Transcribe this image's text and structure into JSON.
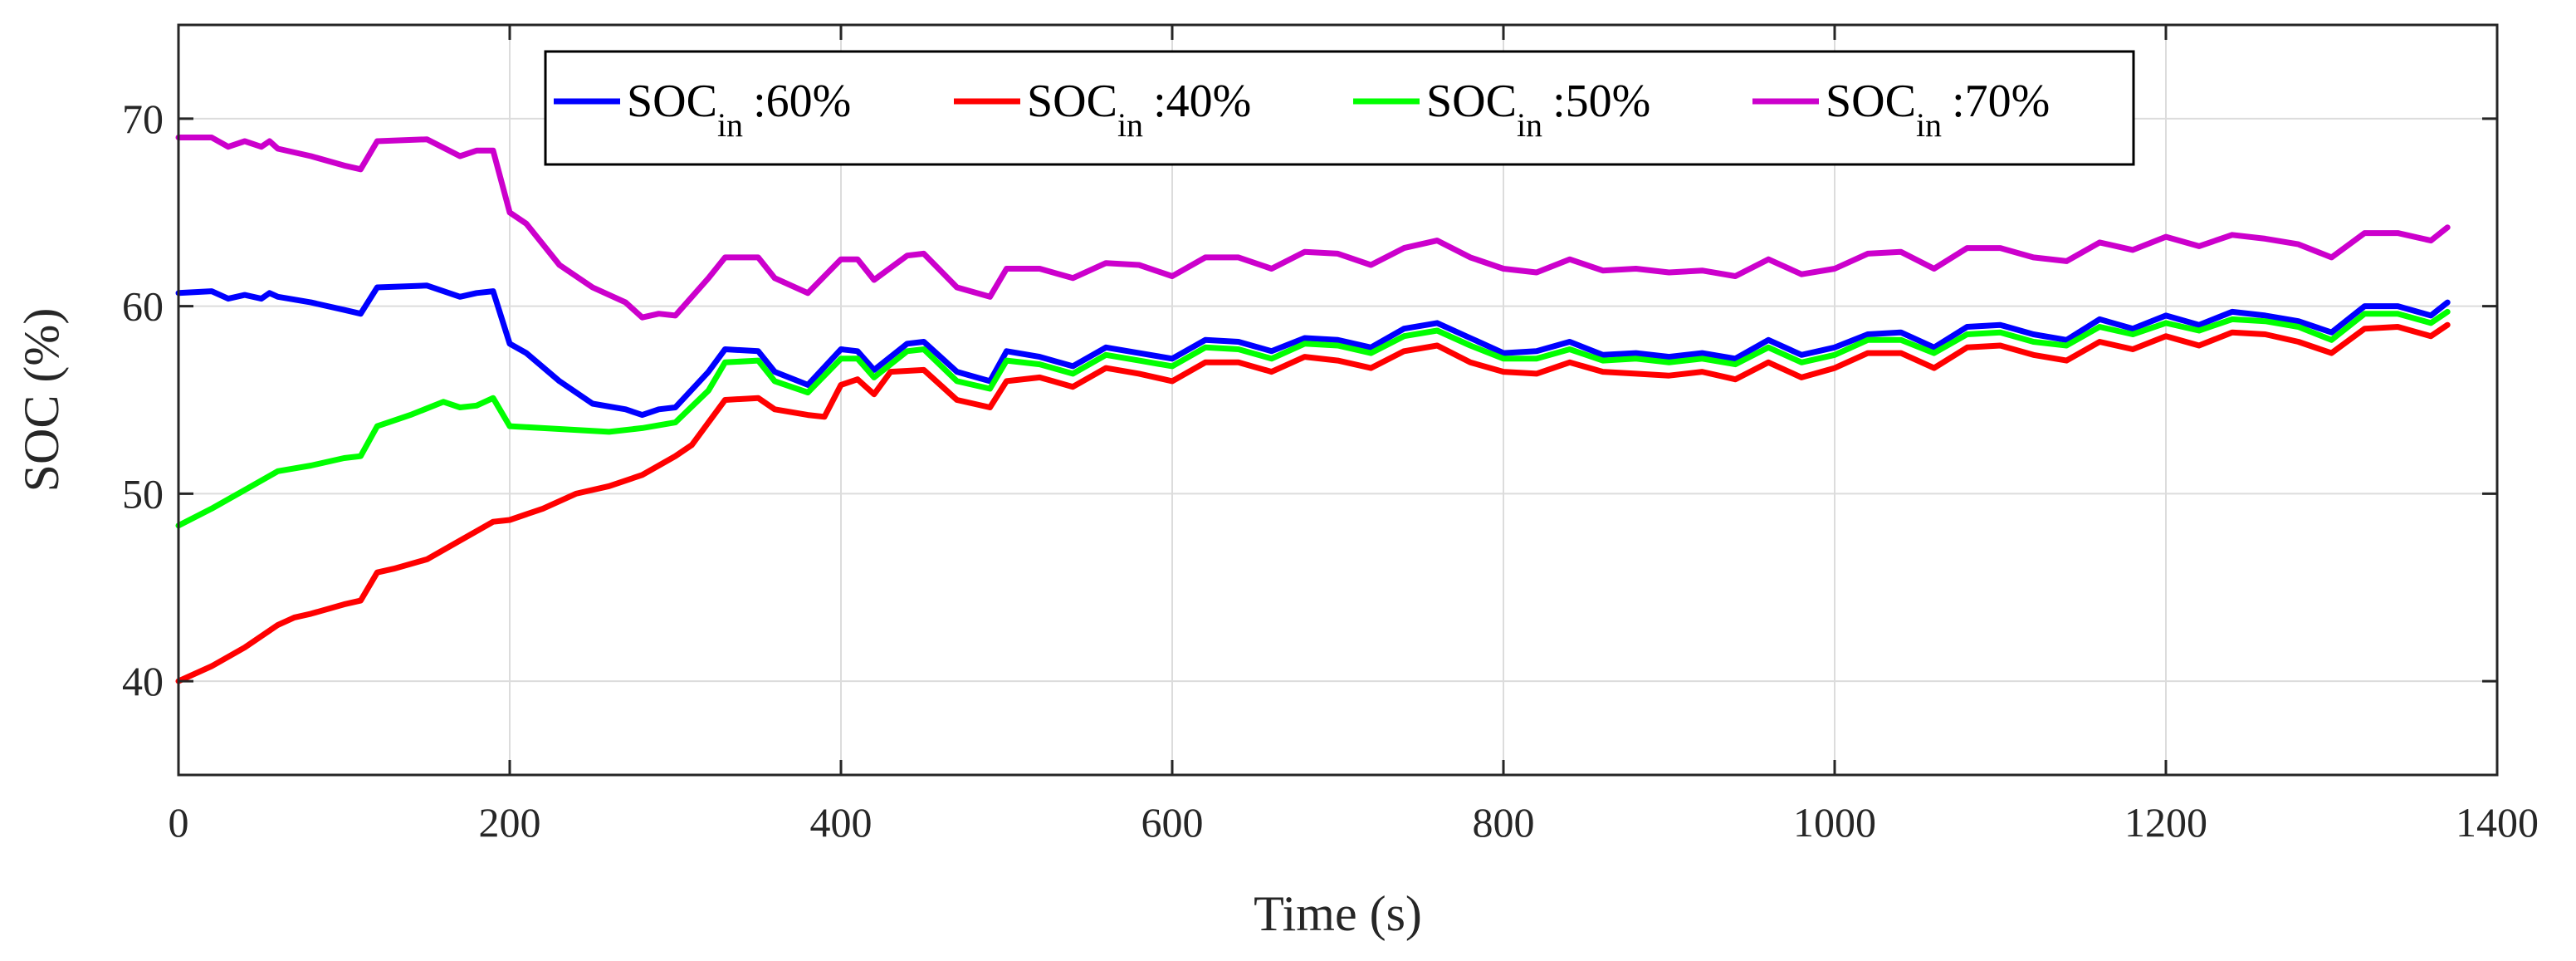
{
  "chart_data": {
    "type": "line",
    "title": "",
    "xlabel": "Time (s)",
    "ylabel": "SOC (%)",
    "xlim": [
      0,
      1400
    ],
    "ylim": [
      35,
      75
    ],
    "xticks": [
      0,
      200,
      400,
      600,
      800,
      1000,
      1200,
      1400
    ],
    "yticks": [
      40,
      50,
      60,
      70
    ],
    "x_tick_labels": [
      "0",
      "200",
      "400",
      "600",
      "800",
      "1000",
      "1200",
      "1400"
    ],
    "y_tick_labels": [
      "40",
      "50",
      "60",
      "70"
    ],
    "grid": true,
    "legend_position": "top-center",
    "series": [
      {
        "name": "SOC_in :60%",
        "legend_main": "SOC",
        "legend_sub": "in",
        "legend_value": ":60%",
        "color": "#0000ff",
        "x": [
          0,
          20,
          30,
          40,
          50,
          55,
          60,
          80,
          100,
          110,
          120,
          150,
          170,
          180,
          190,
          200,
          210,
          230,
          250,
          270,
          280,
          290,
          300,
          320,
          330,
          350,
          360,
          380,
          400,
          410,
          420,
          440,
          450,
          470,
          490,
          500,
          520,
          540,
          560,
          580,
          600,
          620,
          640,
          660,
          680,
          700,
          720,
          740,
          760,
          780,
          800,
          820,
          840,
          860,
          880,
          900,
          920,
          940,
          960,
          980,
          1000,
          1020,
          1040,
          1060,
          1080,
          1100,
          1120,
          1140,
          1160,
          1180,
          1200,
          1220,
          1240,
          1260,
          1280,
          1300,
          1320,
          1340,
          1360,
          1370
        ],
        "y": [
          60.7,
          60.8,
          60.4,
          60.6,
          60.4,
          60.7,
          60.5,
          60.2,
          59.8,
          59.6,
          61.0,
          61.1,
          60.5,
          60.7,
          60.8,
          58.0,
          57.5,
          56.0,
          54.8,
          54.5,
          54.2,
          54.5,
          54.6,
          56.5,
          57.7,
          57.6,
          56.5,
          55.8,
          57.7,
          57.6,
          56.6,
          58.0,
          58.1,
          56.5,
          56.0,
          57.6,
          57.3,
          56.8,
          57.8,
          57.5,
          57.2,
          58.2,
          58.1,
          57.6,
          58.3,
          58.2,
          57.8,
          58.8,
          59.1,
          58.3,
          57.5,
          57.6,
          58.1,
          57.4,
          57.5,
          57.3,
          57.5,
          57.2,
          58.2,
          57.4,
          57.8,
          58.5,
          58.6,
          57.8,
          58.9,
          59.0,
          58.5,
          58.2,
          59.3,
          58.8,
          59.5,
          59.0,
          59.7,
          59.5,
          59.2,
          58.6,
          60.0,
          60.0,
          59.5,
          60.2
        ]
      },
      {
        "name": "SOC_in :40%",
        "legend_main": "SOC",
        "legend_sub": "in",
        "legend_value": ":40%",
        "color": "#ff0000",
        "x": [
          0,
          20,
          40,
          60,
          70,
          80,
          100,
          110,
          120,
          130,
          150,
          170,
          190,
          200,
          220,
          240,
          260,
          280,
          300,
          310,
          320,
          330,
          350,
          360,
          380,
          390,
          400,
          410,
          420,
          430,
          450,
          470,
          490,
          500,
          520,
          540,
          560,
          580,
          600,
          620,
          640,
          660,
          680,
          700,
          720,
          740,
          760,
          780,
          800,
          820,
          840,
          860,
          880,
          900,
          920,
          940,
          960,
          980,
          1000,
          1020,
          1040,
          1060,
          1080,
          1100,
          1120,
          1140,
          1160,
          1180,
          1200,
          1220,
          1240,
          1260,
          1280,
          1300,
          1320,
          1340,
          1360,
          1370
        ],
        "y": [
          40.0,
          40.8,
          41.8,
          43.0,
          43.4,
          43.6,
          44.1,
          44.3,
          45.8,
          46.0,
          46.5,
          47.5,
          48.5,
          48.6,
          49.2,
          50.0,
          50.4,
          51.0,
          52.0,
          52.6,
          53.8,
          55.0,
          55.1,
          54.5,
          54.2,
          54.1,
          55.8,
          56.1,
          55.3,
          56.5,
          56.6,
          55.0,
          54.6,
          56.0,
          56.2,
          55.7,
          56.7,
          56.4,
          56.0,
          57.0,
          57.0,
          56.5,
          57.3,
          57.1,
          56.7,
          57.6,
          57.9,
          57.0,
          56.5,
          56.4,
          57.0,
          56.5,
          56.4,
          56.3,
          56.5,
          56.1,
          57.0,
          56.2,
          56.7,
          57.5,
          57.5,
          56.7,
          57.8,
          57.9,
          57.4,
          57.1,
          58.1,
          57.7,
          58.4,
          57.9,
          58.6,
          58.5,
          58.1,
          57.5,
          58.8,
          58.9,
          58.4,
          59.0
        ]
      },
      {
        "name": "SOC_in :50%",
        "legend_main": "SOC",
        "legend_sub": "in",
        "legend_value": ":50%",
        "color": "#00ff00",
        "x": [
          0,
          20,
          40,
          60,
          80,
          100,
          110,
          120,
          140,
          160,
          170,
          180,
          190,
          200,
          220,
          240,
          260,
          280,
          300,
          320,
          330,
          350,
          360,
          380,
          400,
          410,
          420,
          440,
          450,
          470,
          490,
          500,
          520,
          540,
          560,
          580,
          600,
          620,
          640,
          660,
          680,
          700,
          720,
          740,
          760,
          780,
          800,
          820,
          840,
          860,
          880,
          900,
          920,
          940,
          960,
          980,
          1000,
          1020,
          1040,
          1060,
          1080,
          1100,
          1120,
          1140,
          1160,
          1180,
          1200,
          1220,
          1240,
          1260,
          1280,
          1300,
          1320,
          1340,
          1360,
          1370
        ],
        "y": [
          48.3,
          49.2,
          50.2,
          51.2,
          51.5,
          51.9,
          52.0,
          53.6,
          54.2,
          54.9,
          54.6,
          54.7,
          55.1,
          53.6,
          53.5,
          53.4,
          53.3,
          53.5,
          53.8,
          55.5,
          57.0,
          57.1,
          56.0,
          55.4,
          57.2,
          57.2,
          56.2,
          57.6,
          57.7,
          56.0,
          55.6,
          57.1,
          56.9,
          56.4,
          57.4,
          57.1,
          56.8,
          57.8,
          57.7,
          57.2,
          58.0,
          57.9,
          57.5,
          58.4,
          58.7,
          57.9,
          57.2,
          57.2,
          57.7,
          57.1,
          57.2,
          57.0,
          57.2,
          56.9,
          57.8,
          57.0,
          57.4,
          58.2,
          58.2,
          57.5,
          58.5,
          58.6,
          58.1,
          57.9,
          58.9,
          58.5,
          59.1,
          58.7,
          59.3,
          59.2,
          58.9,
          58.2,
          59.6,
          59.6,
          59.1,
          59.7
        ]
      },
      {
        "name": "SOC_in :70%",
        "legend_main": "SOC",
        "legend_sub": "in",
        "legend_value": ":70%",
        "color": "#cc00cc",
        "x": [
          0,
          20,
          30,
          40,
          50,
          55,
          60,
          80,
          100,
          110,
          120,
          150,
          170,
          180,
          190,
          200,
          210,
          230,
          250,
          270,
          280,
          290,
          300,
          320,
          330,
          350,
          360,
          380,
          400,
          410,
          420,
          440,
          450,
          470,
          490,
          500,
          520,
          540,
          560,
          580,
          600,
          620,
          640,
          660,
          680,
          700,
          720,
          740,
          760,
          780,
          800,
          820,
          840,
          860,
          880,
          900,
          920,
          940,
          960,
          980,
          1000,
          1020,
          1040,
          1060,
          1080,
          1100,
          1120,
          1140,
          1160,
          1180,
          1200,
          1220,
          1240,
          1260,
          1280,
          1300,
          1320,
          1340,
          1360,
          1370
        ],
        "y": [
          69.0,
          69.0,
          68.5,
          68.8,
          68.5,
          68.8,
          68.4,
          68.0,
          67.5,
          67.3,
          68.8,
          68.9,
          68.0,
          68.3,
          68.3,
          65.0,
          64.4,
          62.2,
          61.0,
          60.2,
          59.4,
          59.6,
          59.5,
          61.5,
          62.6,
          62.6,
          61.5,
          60.7,
          62.5,
          62.5,
          61.4,
          62.7,
          62.8,
          61.0,
          60.5,
          62.0,
          62.0,
          61.5,
          62.3,
          62.2,
          61.6,
          62.6,
          62.6,
          62.0,
          62.9,
          62.8,
          62.2,
          63.1,
          63.5,
          62.6,
          62.0,
          61.8,
          62.5,
          61.9,
          62.0,
          61.8,
          61.9,
          61.6,
          62.5,
          61.7,
          62.0,
          62.8,
          62.9,
          62.0,
          63.1,
          63.1,
          62.6,
          62.4,
          63.4,
          63.0,
          63.7,
          63.2,
          63.8,
          63.6,
          63.3,
          62.6,
          63.9,
          63.9,
          63.5,
          64.2
        ]
      }
    ]
  }
}
